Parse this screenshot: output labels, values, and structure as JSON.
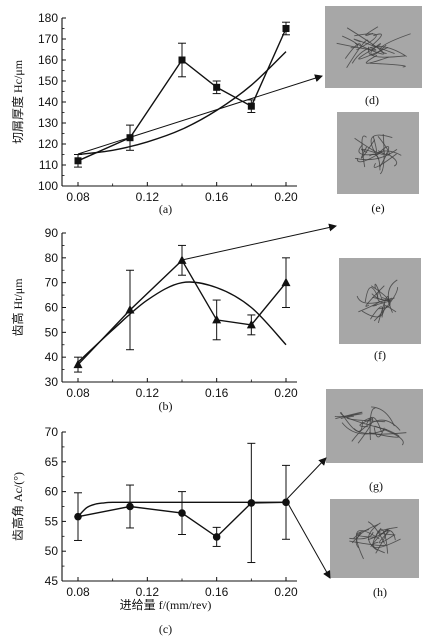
{
  "chart_data": [
    {
      "type": "line",
      "panel_label": "(a)",
      "ylabel": "切屑厚度 Hc/μm",
      "xlabel": "",
      "x": [
        0.08,
        0.11,
        0.14,
        0.16,
        0.18,
        0.2
      ],
      "xticks": [
        "0.08",
        "0.12",
        "0.16",
        "0.20"
      ],
      "xlim": [
        0.07,
        0.205
      ],
      "ylim": [
        100,
        180
      ],
      "yticks": [
        "100",
        "110",
        "120",
        "130",
        "140",
        "150",
        "160",
        "170",
        "180"
      ],
      "series": [
        {
          "marker": "square",
          "values": [
            112,
            123,
            160,
            147,
            138,
            175
          ],
          "err": [
            3,
            6,
            8,
            3,
            3,
            3
          ]
        },
        {
          "fit": true,
          "x": [
            0.08,
            0.1,
            0.12,
            0.14,
            0.16,
            0.18,
            0.2
          ],
          "values": [
            115,
            117,
            121,
            127,
            136,
            148,
            164
          ]
        }
      ]
    },
    {
      "type": "line",
      "panel_label": "(b)",
      "ylabel": "齿高 Ht/μm",
      "xlabel": "",
      "x": [
        0.08,
        0.11,
        0.14,
        0.16,
        0.18,
        0.2
      ],
      "xticks": [
        "0.08",
        "0.12",
        "0.16",
        "0.20"
      ],
      "xlim": [
        0.07,
        0.205
      ],
      "ylim": [
        30,
        90
      ],
      "yticks": [
        "30",
        "40",
        "50",
        "60",
        "70",
        "80",
        "90"
      ],
      "series": [
        {
          "marker": "triangle",
          "values": [
            37,
            59,
            79,
            55,
            53,
            70
          ],
          "err": [
            3,
            16,
            6,
            8,
            4,
            10
          ]
        },
        {
          "fit": true,
          "x": [
            0.08,
            0.1,
            0.12,
            0.14,
            0.16,
            0.18,
            0.2
          ],
          "values": [
            38,
            51,
            63,
            70,
            68,
            60,
            45
          ]
        }
      ]
    },
    {
      "type": "line",
      "panel_label": "(c)",
      "ylabel": "齿高角 Ac/(°)",
      "xlabel": "进给量 f/(mm/rev)",
      "x": [
        0.08,
        0.11,
        0.14,
        0.16,
        0.18,
        0.2
      ],
      "xticks": [
        "0.08",
        "0.12",
        "0.16",
        "0.20"
      ],
      "xlim": [
        0.07,
        0.205
      ],
      "ylim": [
        45,
        70
      ],
      "yticks": [
        "45",
        "50",
        "55",
        "60",
        "65",
        "70"
      ],
      "series": [
        {
          "marker": "circle",
          "values": [
            55.8,
            57.5,
            56.4,
            52.4,
            58.1,
            58.2
          ],
          "err": [
            4,
            3.6,
            3.6,
            1.6,
            10,
            6.2
          ]
        },
        {
          "fit": true,
          "x": [
            0.08,
            0.085,
            0.09,
            0.095,
            0.1,
            0.12,
            0.14,
            0.16,
            0.18,
            0.2
          ],
          "values": [
            55.8,
            57.3,
            57.9,
            58.1,
            58.2,
            58.2,
            58.2,
            58.2,
            58.2,
            58.2
          ]
        }
      ]
    }
  ],
  "photos": [
    {
      "label": "(d)"
    },
    {
      "label": "(e)"
    },
    {
      "label": "(f)"
    },
    {
      "label": "(g)"
    },
    {
      "label": "(h)"
    }
  ],
  "colors": {
    "ink": "#111111",
    "photo_bg": "#a7a7a7",
    "chip": "#3d3d3d"
  }
}
